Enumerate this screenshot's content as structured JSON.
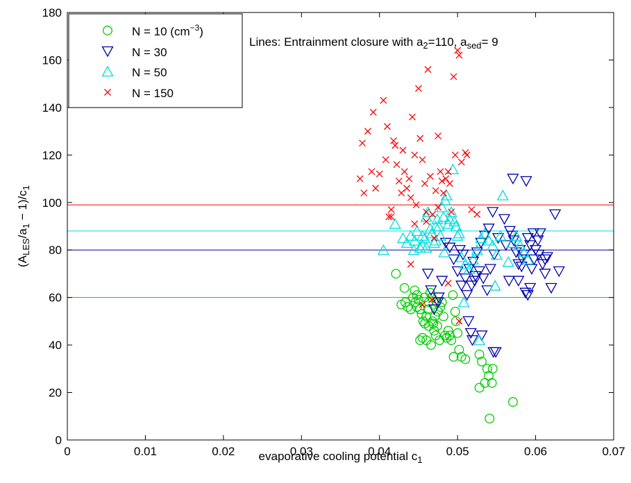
{
  "chart_data": {
    "type": "scatter",
    "xlabel": "evaporative cooling potential c",
    "xlabel_sub": "1",
    "ylabel_parts": [
      "(A",
      "LES",
      "/a",
      "1",
      " − 1)/c",
      "1"
    ],
    "xlim": [
      0,
      0.07
    ],
    "ylim": [
      0,
      180
    ],
    "xticks": [
      0,
      0.01,
      0.02,
      0.03,
      0.04,
      0.05,
      0.06,
      0.07
    ],
    "xtick_labels": [
      "0",
      "0.01",
      "0.02",
      "0.03",
      "0.04",
      "0.05",
      "0.06",
      "0.07"
    ],
    "yticks": [
      0,
      20,
      40,
      60,
      80,
      100,
      120,
      140,
      160,
      180
    ],
    "ytick_labels": [
      "0",
      "20",
      "40",
      "60",
      "80",
      "100",
      "120",
      "140",
      "160",
      "180"
    ],
    "grid": false,
    "legend_position": "top-left",
    "annotation": {
      "parts": [
        "Lines:  Entrainment closure with a",
        "2",
        "=110, a",
        "sed",
        "= 9"
      ]
    },
    "series": [
      {
        "name": "N = 10 (cm−3)",
        "legend_parts": [
          "N = 10 (cm",
          "−3",
          ")"
        ],
        "marker": "circle",
        "color": "#00cc00",
        "line": 60,
        "points": [
          [
            0.0421,
            70
          ],
          [
            0.0432,
            64
          ],
          [
            0.0428,
            57
          ],
          [
            0.0433,
            58
          ],
          [
            0.0436,
            56
          ],
          [
            0.044,
            55
          ],
          [
            0.0443,
            60
          ],
          [
            0.0445,
            63
          ],
          [
            0.0448,
            61
          ],
          [
            0.045,
            59
          ],
          [
            0.0452,
            55
          ],
          [
            0.0454,
            53
          ],
          [
            0.0456,
            50
          ],
          [
            0.0458,
            49
          ],
          [
            0.046,
            52
          ],
          [
            0.0462,
            55
          ],
          [
            0.0463,
            58
          ],
          [
            0.0465,
            62
          ],
          [
            0.0467,
            60
          ],
          [
            0.0468,
            50
          ],
          [
            0.047,
            46
          ],
          [
            0.0472,
            44
          ],
          [
            0.0474,
            48
          ],
          [
            0.0475,
            54
          ],
          [
            0.0478,
            56
          ],
          [
            0.048,
            58
          ],
          [
            0.0482,
            52
          ],
          [
            0.0484,
            44
          ],
          [
            0.0486,
            43
          ],
          [
            0.0488,
            46
          ],
          [
            0.049,
            44
          ],
          [
            0.0492,
            42
          ],
          [
            0.0494,
            61
          ],
          [
            0.0497,
            54
          ],
          [
            0.0498,
            50
          ],
          [
            0.05,
            45
          ],
          [
            0.0502,
            38
          ],
          [
            0.0505,
            35
          ],
          [
            0.051,
            34
          ],
          [
            0.0495,
            35
          ],
          [
            0.0455,
            43
          ],
          [
            0.0452,
            42
          ],
          [
            0.046,
            42
          ],
          [
            0.0466,
            40
          ],
          [
            0.0471,
            52
          ],
          [
            0.0477,
            42
          ],
          [
            0.0448,
            56
          ],
          [
            0.0458,
            60
          ],
          [
            0.0469,
            49
          ],
          [
            0.0446,
            58
          ],
          [
            0.0528,
            36
          ],
          [
            0.0531,
            33
          ],
          [
            0.0535,
            24
          ],
          [
            0.0538,
            30
          ],
          [
            0.054,
            27
          ],
          [
            0.0544,
            24
          ],
          [
            0.0545,
            30
          ],
          [
            0.0528,
            22
          ],
          [
            0.0571,
            16
          ],
          [
            0.0541,
            9
          ],
          [
            0.0473,
            58
          ],
          [
            0.0463,
            48
          ]
        ]
      },
      {
        "name": "N = 30",
        "legend_parts": [
          "N = 30"
        ],
        "marker": "triangle-down",
        "color": "#0000aa",
        "line": 80,
        "points": [
          [
            0.0562,
            82
          ],
          [
            0.0567,
            88
          ],
          [
            0.057,
            86
          ],
          [
            0.0572,
            84
          ],
          [
            0.0575,
            79
          ],
          [
            0.0578,
            74
          ],
          [
            0.058,
            80
          ],
          [
            0.0583,
            76
          ],
          [
            0.0585,
            78
          ],
          [
            0.0587,
            62
          ],
          [
            0.059,
            61
          ],
          [
            0.0593,
            64
          ],
          [
            0.0595,
            72
          ],
          [
            0.0598,
            76
          ],
          [
            0.06,
            80
          ],
          [
            0.0603,
            84
          ],
          [
            0.0606,
            87
          ],
          [
            0.0609,
            74
          ],
          [
            0.0612,
            70
          ],
          [
            0.0615,
            77
          ],
          [
            0.062,
            64
          ],
          [
            0.0625,
            95
          ],
          [
            0.063,
            71
          ],
          [
            0.059,
            85
          ],
          [
            0.056,
            93
          ],
          [
            0.0545,
            96
          ],
          [
            0.054,
            89
          ],
          [
            0.0535,
            86
          ],
          [
            0.053,
            83
          ],
          [
            0.0525,
            79
          ],
          [
            0.052,
            75
          ],
          [
            0.0515,
            72
          ],
          [
            0.051,
            68
          ],
          [
            0.0505,
            65
          ],
          [
            0.05,
            71
          ],
          [
            0.0495,
            76
          ],
          [
            0.049,
            81
          ],
          [
            0.0485,
            83
          ],
          [
            0.048,
            67
          ],
          [
            0.0475,
            58
          ],
          [
            0.047,
            55
          ],
          [
            0.0466,
            63
          ],
          [
            0.0462,
            70
          ],
          [
            0.0512,
            61
          ],
          [
            0.0518,
            65
          ],
          [
            0.0522,
            67
          ],
          [
            0.0528,
            71
          ],
          [
            0.0533,
            68
          ],
          [
            0.0538,
            63
          ],
          [
            0.0542,
            72
          ],
          [
            0.0547,
            78
          ],
          [
            0.0552,
            85
          ],
          [
            0.0503,
            80
          ],
          [
            0.0507,
            78
          ],
          [
            0.0514,
            50
          ],
          [
            0.0517,
            45
          ],
          [
            0.0519,
            42
          ],
          [
            0.0531,
            44
          ],
          [
            0.0546,
            37
          ],
          [
            0.0549,
            37
          ],
          [
            0.0571,
            110
          ],
          [
            0.0588,
            109
          ],
          [
            0.0593,
            82
          ],
          [
            0.0597,
            87
          ],
          [
            0.0566,
            67
          ],
          [
            0.0582,
            73
          ],
          [
            0.0604,
            78
          ],
          [
            0.0612,
            76
          ],
          [
            0.0578,
            67
          ],
          [
            0.0476,
            60
          ],
          [
            0.0523,
            69
          ]
        ]
      },
      {
        "name": "N = 50",
        "legend_parts": [
          "N = 50"
        ],
        "marker": "triangle-up",
        "color": "#00dddd",
        "line": 88,
        "points": [
          [
            0.0405,
            80
          ],
          [
            0.042,
            91
          ],
          [
            0.043,
            85
          ],
          [
            0.0435,
            83
          ],
          [
            0.044,
            86
          ],
          [
            0.0445,
            84
          ],
          [
            0.0448,
            88
          ],
          [
            0.0452,
            81
          ],
          [
            0.0455,
            82
          ],
          [
            0.0458,
            85
          ],
          [
            0.046,
            94
          ],
          [
            0.0462,
            96
          ],
          [
            0.0465,
            89
          ],
          [
            0.0467,
            87
          ],
          [
            0.047,
            83
          ],
          [
            0.0472,
            90
          ],
          [
            0.0474,
            93
          ],
          [
            0.0476,
            90
          ],
          [
            0.0478,
            86
          ],
          [
            0.048,
            98
          ],
          [
            0.0482,
            94
          ],
          [
            0.0484,
            101
          ],
          [
            0.0486,
            103
          ],
          [
            0.0488,
            91
          ],
          [
            0.049,
            93
          ],
          [
            0.0492,
            96
          ],
          [
            0.0494,
            114
          ],
          [
            0.0496,
            92
          ],
          [
            0.05,
            86
          ],
          [
            0.0505,
            77
          ],
          [
            0.051,
            74
          ],
          [
            0.0515,
            72
          ],
          [
            0.052,
            76
          ],
          [
            0.0525,
            80
          ],
          [
            0.053,
            85
          ],
          [
            0.0535,
            87
          ],
          [
            0.054,
            84
          ],
          [
            0.0545,
            82
          ],
          [
            0.055,
            78
          ],
          [
            0.0555,
            86
          ],
          [
            0.0558,
            103
          ],
          [
            0.0565,
            75
          ],
          [
            0.057,
            83
          ],
          [
            0.0575,
            86
          ],
          [
            0.058,
            82
          ],
          [
            0.0585,
            79
          ],
          [
            0.059,
            76
          ],
          [
            0.046,
            81
          ],
          [
            0.0498,
            90
          ],
          [
            0.0528,
            42
          ],
          [
            0.0508,
            58
          ],
          [
            0.0472,
            84
          ],
          [
            0.0483,
            79
          ],
          [
            0.0548,
            65
          ],
          [
            0.0502,
            87
          ],
          [
            0.0455,
            86
          ],
          [
            0.0444,
            80
          ]
        ]
      },
      {
        "name": "N = 150",
        "legend_parts": [
          "N = 150"
        ],
        "marker": "x",
        "color": "#ff0000",
        "line": 99,
        "points": [
          [
            0.0375,
            110
          ],
          [
            0.0378,
            125
          ],
          [
            0.038,
            104
          ],
          [
            0.0385,
            130
          ],
          [
            0.039,
            113
          ],
          [
            0.0392,
            138
          ],
          [
            0.0395,
            106
          ],
          [
            0.04,
            112
          ],
          [
            0.0405,
            143
          ],
          [
            0.0408,
            118
          ],
          [
            0.041,
            132
          ],
          [
            0.0412,
            94
          ],
          [
            0.0415,
            97
          ],
          [
            0.0418,
            126
          ],
          [
            0.042,
            124
          ],
          [
            0.0422,
            116
          ],
          [
            0.0425,
            109
          ],
          [
            0.0428,
            104
          ],
          [
            0.043,
            122
          ],
          [
            0.0432,
            113
          ],
          [
            0.0435,
            106
          ],
          [
            0.0438,
            110
          ],
          [
            0.044,
            102
          ],
          [
            0.0442,
            136
          ],
          [
            0.0445,
            120
          ],
          [
            0.0447,
            99
          ],
          [
            0.045,
            148
          ],
          [
            0.0452,
            127
          ],
          [
            0.0455,
            118
          ],
          [
            0.0458,
            108
          ],
          [
            0.046,
            96
          ],
          [
            0.0462,
            156
          ],
          [
            0.0465,
            111
          ],
          [
            0.0468,
            95
          ],
          [
            0.047,
            85
          ],
          [
            0.0472,
            105
          ],
          [
            0.0475,
            98
          ],
          [
            0.0478,
            113
          ],
          [
            0.048,
            109
          ],
          [
            0.0482,
            104
          ],
          [
            0.0485,
            110
          ],
          [
            0.0488,
            113
          ],
          [
            0.049,
            108
          ],
          [
            0.0492,
            96
          ],
          [
            0.0495,
            153
          ],
          [
            0.0497,
            120
          ],
          [
            0.05,
            164
          ],
          [
            0.0502,
            162
          ],
          [
            0.0505,
            117
          ],
          [
            0.051,
            121
          ],
          [
            0.0512,
            120
          ],
          [
            0.0518,
            97
          ],
          [
            0.0525,
            95
          ],
          [
            0.0445,
            91
          ],
          [
            0.044,
            74
          ],
          [
            0.0488,
            66
          ],
          [
            0.046,
            92
          ],
          [
            0.0467,
            59
          ],
          [
            0.0475,
            128
          ],
          [
            0.0455,
            57
          ],
          [
            0.0502,
            50
          ],
          [
            0.0415,
            94
          ]
        ]
      }
    ]
  }
}
